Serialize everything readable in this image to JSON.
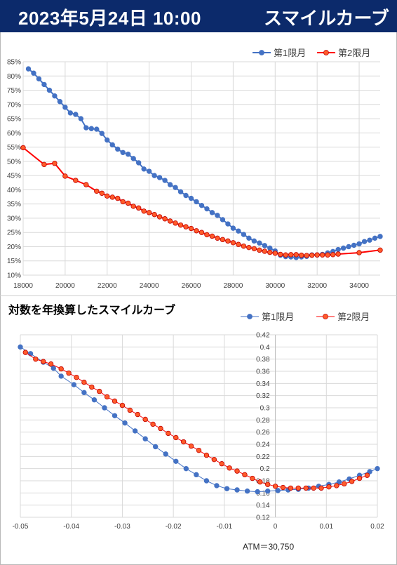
{
  "header": {
    "datetime": "2023年5月24日 10:00",
    "title": "スマイルカーブ"
  },
  "chart1_meta": {
    "series_names": [
      "第1限月",
      "第2限月"
    ]
  },
  "chart2_meta": {
    "title": "対数を年換算したスマイルカーブ",
    "series_names": [
      "第1限月",
      "第2限月"
    ],
    "atm_label": "ATM＝30,750"
  },
  "colors": {
    "header_bg": "#0c2a6b",
    "series1": "#4472c4",
    "series2": "#ff0000",
    "series2_fill": "#ff5b2a"
  },
  "chart_data": [
    {
      "type": "line",
      "title": "",
      "xlabel": "",
      "ylabel": "",
      "xlim": [
        18000,
        35000
      ],
      "ylim": [
        10,
        85
      ],
      "xticks": [
        18000,
        20000,
        22000,
        24000,
        26000,
        28000,
        30000,
        32000,
        34000
      ],
      "yticks": [
        10,
        15,
        20,
        25,
        30,
        35,
        40,
        45,
        50,
        55,
        60,
        65,
        70,
        75,
        80,
        85
      ],
      "y_unit": "%",
      "grid": true,
      "legend": "top-right",
      "series": [
        {
          "name": "第1限月",
          "x": [
            18250,
            18500,
            18750,
            19000,
            19250,
            19500,
            19750,
            20000,
            20250,
            20500,
            20750,
            21000,
            21250,
            21500,
            21750,
            22000,
            22250,
            22500,
            22750,
            23000,
            23250,
            23500,
            23750,
            24000,
            24250,
            24500,
            24750,
            25000,
            25250,
            25500,
            25750,
            26000,
            26250,
            26500,
            26750,
            27000,
            27250,
            27500,
            27750,
            28000,
            28250,
            28500,
            28750,
            29000,
            29250,
            29500,
            29750,
            30000,
            30250,
            30500,
            30750,
            31000,
            31250,
            31500,
            31750,
            32000,
            32250,
            32500,
            32750,
            33000,
            33250,
            33500,
            33750,
            34000,
            34250,
            34500,
            34750,
            35000
          ],
          "y": [
            82.5,
            81,
            79,
            77,
            75,
            73,
            71,
            69,
            67,
            66.5,
            65,
            61.8,
            61.5,
            61.3,
            59.8,
            57.5,
            55.8,
            54.3,
            53.1,
            52.5,
            51,
            49.5,
            47.3,
            46.5,
            45,
            44.3,
            43.3,
            41.8,
            40.8,
            39.3,
            38,
            37,
            35.8,
            34.5,
            33.3,
            32,
            31,
            29.5,
            28,
            26.5,
            25.5,
            24.3,
            23,
            22,
            21.3,
            20.4,
            19.5,
            18.5,
            17,
            16.5,
            16.4,
            16.2,
            16.4,
            16.6,
            17.1,
            17.1,
            17.3,
            17.8,
            18.3,
            19,
            19.5,
            20,
            20.5,
            21,
            21.8,
            22.3,
            23,
            23.6
          ]
        },
        {
          "name": "第2限月",
          "x": [
            18000,
            19000,
            19500,
            20000,
            20500,
            21000,
            21500,
            21750,
            22000,
            22250,
            22500,
            22750,
            23000,
            23250,
            23500,
            23750,
            24000,
            24250,
            24500,
            24750,
            25000,
            25250,
            25500,
            25750,
            26000,
            26250,
            26500,
            26750,
            27000,
            27250,
            27500,
            27750,
            28000,
            28250,
            28500,
            28750,
            29000,
            29250,
            29500,
            29750,
            30000,
            30250,
            30500,
            30750,
            31000,
            31250,
            31500,
            31750,
            32000,
            32250,
            32500,
            32750,
            33000,
            34000,
            35000
          ],
          "y": [
            54.8,
            48.9,
            49.3,
            44.8,
            43.3,
            41.8,
            39.5,
            38.8,
            37.8,
            37.4,
            37,
            35.8,
            35.3,
            34.2,
            33.6,
            32.5,
            32,
            31.3,
            30.5,
            29.8,
            29,
            28.3,
            27.6,
            27,
            26.4,
            25.6,
            25,
            24.2,
            23.7,
            23,
            22.5,
            22,
            21.4,
            20.8,
            20.2,
            19.7,
            19.3,
            18.8,
            18.4,
            18,
            17.7,
            17.3,
            17.1,
            17.2,
            17.2,
            17,
            16.9,
            17,
            17.1,
            17.1,
            17.1,
            17.2,
            17.4,
            17.9,
            18.8
          ]
        }
      ]
    },
    {
      "type": "scatter",
      "title": "対数を年換算したスマイルカーブ",
      "xlabel": "",
      "ylabel": "",
      "xlim": [
        -0.05,
        0.02
      ],
      "ylim": [
        0.12,
        0.42
      ],
      "xticks": [
        -0.05,
        -0.04,
        -0.03,
        -0.02,
        -0.01,
        0,
        0.01,
        0.02
      ],
      "yticks": [
        0.12,
        0.14,
        0.16,
        0.18,
        0.2,
        0.22,
        0.24,
        0.26,
        0.28,
        0.3,
        0.32,
        0.34,
        0.36,
        0.38,
        0.4,
        0.42
      ],
      "grid": true,
      "legend": "top-right",
      "annotation": "ATM＝30,750",
      "series": [
        {
          "name": "第1限月",
          "x": [
            -0.05,
            -0.048,
            -0.0455,
            -0.0435,
            -0.042,
            -0.0395,
            -0.0375,
            -0.0355,
            -0.0335,
            -0.0315,
            -0.0295,
            -0.0275,
            -0.0255,
            -0.0235,
            -0.0215,
            -0.0195,
            -0.0175,
            -0.0155,
            -0.0135,
            -0.0115,
            -0.0095,
            -0.0075,
            -0.0055,
            -0.0035,
            -0.0015,
            0.0005,
            0.0025,
            0.0045,
            0.0065,
            0.0085,
            0.0105,
            0.0125,
            0.0145,
            0.0165,
            0.0185,
            0.02
          ],
          "y": [
            0.4,
            0.389,
            0.375,
            0.365,
            0.352,
            0.338,
            0.325,
            0.313,
            0.3,
            0.287,
            0.275,
            0.262,
            0.249,
            0.236,
            0.224,
            0.212,
            0.2,
            0.19,
            0.18,
            0.172,
            0.167,
            0.165,
            0.163,
            0.162,
            0.163,
            0.164,
            0.165,
            0.166,
            0.168,
            0.171,
            0.174,
            0.178,
            0.183,
            0.189,
            0.195,
            0.2
          ]
        },
        {
          "name": "第2限月",
          "x": [
            -0.049,
            -0.047,
            -0.0455,
            -0.044,
            -0.042,
            -0.0405,
            -0.039,
            -0.0375,
            -0.036,
            -0.0345,
            -0.033,
            -0.0315,
            -0.03,
            -0.0285,
            -0.027,
            -0.0255,
            -0.024,
            -0.0225,
            -0.021,
            -0.0195,
            -0.018,
            -0.0165,
            -0.015,
            -0.0135,
            -0.012,
            -0.0105,
            -0.009,
            -0.0075,
            -0.006,
            -0.0045,
            -0.003,
            -0.0015,
            0,
            0.0015,
            0.003,
            0.0045,
            0.006,
            0.0075,
            0.009,
            0.0105,
            0.012,
            0.0135,
            0.015,
            0.0165,
            0.018
          ],
          "y": [
            0.391,
            0.38,
            0.376,
            0.372,
            0.364,
            0.357,
            0.35,
            0.342,
            0.334,
            0.327,
            0.318,
            0.311,
            0.304,
            0.296,
            0.289,
            0.281,
            0.273,
            0.266,
            0.258,
            0.251,
            0.244,
            0.237,
            0.23,
            0.222,
            0.215,
            0.208,
            0.201,
            0.196,
            0.19,
            0.184,
            0.178,
            0.174,
            0.171,
            0.169,
            0.168,
            0.168,
            0.168,
            0.168,
            0.168,
            0.17,
            0.172,
            0.175,
            0.179,
            0.184,
            0.189
          ]
        }
      ]
    }
  ]
}
